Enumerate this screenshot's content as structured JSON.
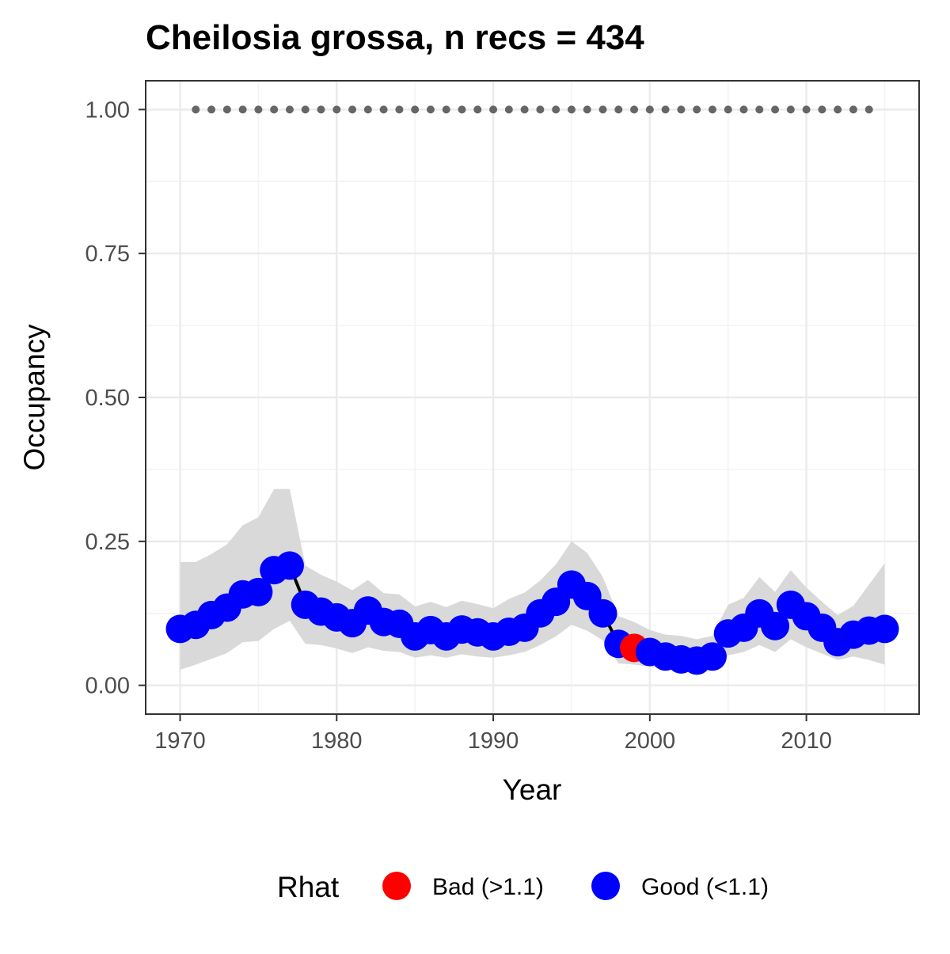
{
  "chart_data": {
    "type": "line",
    "title": "Cheilosia grossa, n recs = 434",
    "xlabel": "Year",
    "ylabel": "Occupancy",
    "xlim": [
      1967.8,
      2017.2
    ],
    "ylim": [
      -0.05,
      1.05
    ],
    "x_ticks": [
      1970,
      1980,
      1990,
      2000,
      2010
    ],
    "x_tick_labels": [
      "1970",
      "1980",
      "1990",
      "2000",
      "2010"
    ],
    "y_ticks": [
      0,
      0.25,
      0.5,
      0.75,
      1.0
    ],
    "y_tick_labels": [
      "0.00",
      "0.25",
      "0.50",
      "0.75",
      "1.00"
    ],
    "grid": true,
    "x": [
      1970,
      1971,
      1972,
      1973,
      1974,
      1975,
      1976,
      1977,
      1978,
      1979,
      1980,
      1981,
      1982,
      1983,
      1984,
      1985,
      1986,
      1987,
      1988,
      1989,
      1990,
      1991,
      1992,
      1993,
      1994,
      1995,
      1996,
      1997,
      1998,
      1999,
      2000,
      2001,
      2002,
      2003,
      2004,
      2005,
      2006,
      2007,
      2008,
      2009,
      2010,
      2011,
      2012,
      2013,
      2014,
      2015
    ],
    "series": [
      {
        "type": "line+points",
        "values": [
          0.098,
          0.105,
          0.122,
          0.135,
          0.158,
          0.162,
          0.2,
          0.208,
          0.14,
          0.128,
          0.118,
          0.108,
          0.13,
          0.11,
          0.107,
          0.085,
          0.096,
          0.085,
          0.097,
          0.092,
          0.085,
          0.093,
          0.1,
          0.125,
          0.145,
          0.175,
          0.155,
          0.125,
          0.072,
          0.065,
          0.058,
          0.05,
          0.045,
          0.043,
          0.05,
          0.09,
          0.1,
          0.125,
          0.103,
          0.14,
          0.12,
          0.1,
          0.075,
          0.088,
          0.095,
          0.098
        ],
        "lower": [
          0.027,
          0.036,
          0.046,
          0.056,
          0.075,
          0.077,
          0.098,
          0.112,
          0.072,
          0.07,
          0.064,
          0.056,
          0.066,
          0.06,
          0.058,
          0.048,
          0.052,
          0.048,
          0.054,
          0.05,
          0.048,
          0.052,
          0.058,
          0.07,
          0.085,
          0.105,
          0.095,
          0.078,
          0.038,
          0.036,
          0.032,
          0.03,
          0.026,
          0.026,
          0.03,
          0.052,
          0.058,
          0.07,
          0.058,
          0.08,
          0.066,
          0.055,
          0.044,
          0.05,
          0.044,
          0.036
        ],
        "upper": [
          0.214,
          0.214,
          0.228,
          0.245,
          0.278,
          0.292,
          0.341,
          0.341,
          0.208,
          0.192,
          0.18,
          0.165,
          0.183,
          0.16,
          0.158,
          0.137,
          0.145,
          0.136,
          0.147,
          0.141,
          0.134,
          0.15,
          0.161,
          0.182,
          0.21,
          0.25,
          0.23,
          0.188,
          0.12,
          0.11,
          0.096,
          0.088,
          0.086,
          0.08,
          0.086,
          0.14,
          0.152,
          0.188,
          0.162,
          0.2,
          0.17,
          0.145,
          0.122,
          0.138,
          0.175,
          0.212
        ],
        "rhat": [
          "Good (<1.1)",
          "Good (<1.1)",
          "Good (<1.1)",
          "Good (<1.1)",
          "Good (<1.1)",
          "Good (<1.1)",
          "Good (<1.1)",
          "Good (<1.1)",
          "Good (<1.1)",
          "Good (<1.1)",
          "Good (<1.1)",
          "Good (<1.1)",
          "Good (<1.1)",
          "Good (<1.1)",
          "Good (<1.1)",
          "Good (<1.1)",
          "Good (<1.1)",
          "Good (<1.1)",
          "Good (<1.1)",
          "Good (<1.1)",
          "Good (<1.1)",
          "Good (<1.1)",
          "Good (<1.1)",
          "Good (<1.1)",
          "Good (<1.1)",
          "Good (<1.1)",
          "Good (<1.1)",
          "Good (<1.1)",
          "Good (<1.1)",
          "Bad (>1.1)",
          "Good (<1.1)",
          "Good (<1.1)",
          "Good (<1.1)",
          "Good (<1.1)",
          "Good (<1.1)",
          "Good (<1.1)",
          "Good (<1.1)",
          "Good (<1.1)",
          "Good (<1.1)",
          "Good (<1.1)",
          "Good (<1.1)",
          "Good (<1.1)",
          "Good (<1.1)",
          "Good (<1.1)",
          "Good (<1.1)",
          "Good (<1.1)"
        ]
      },
      {
        "type": "dotted-points",
        "x_range": [
          1971,
          2014
        ],
        "values_constant": 1.0
      }
    ],
    "legend": {
      "title": "Rhat",
      "position": "bottom",
      "entries": [
        {
          "label": "Bad (>1.1)",
          "color": "#ff0000"
        },
        {
          "label": "Good (<1.1)",
          "color": "#0000ff"
        }
      ]
    },
    "colors": {
      "good": "#0000ff",
      "bad": "#ff0000",
      "ribbon": "#d9d9d9",
      "line": "#000000",
      "dotted": "#666666",
      "grid_major": "#ebebeb",
      "grid_minor": "#f3f3f3",
      "panel_border": "#333333"
    }
  }
}
